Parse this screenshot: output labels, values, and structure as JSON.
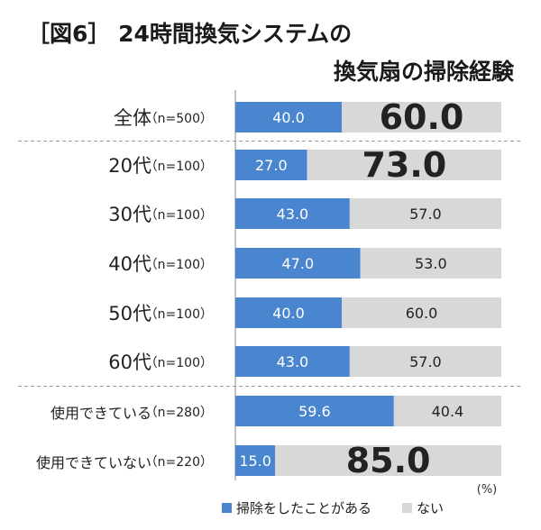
{
  "title_line1": "［図6］ 24時間換気システムの",
  "title_line2": "換気扇の掃除経験",
  "chart_data": {
    "type": "bar",
    "stacked": true,
    "orientation": "horizontal",
    "title": "［図6］ 24時間換気システムの 換気扇の掃除経験",
    "unit": "(%)",
    "xlim": [
      0,
      100
    ],
    "categories": [
      {
        "label": "全体",
        "n": "（n=500）"
      },
      {
        "label": "20代",
        "n": "（n=100）"
      },
      {
        "label": "30代",
        "n": "（n=100）"
      },
      {
        "label": "40代",
        "n": "（n=100）"
      },
      {
        "label": "50代",
        "n": "（n=100）"
      },
      {
        "label": "60代",
        "n": "（n=100）"
      },
      {
        "label": "使用できている",
        "n": "（n=280）"
      },
      {
        "label": "使用できていない",
        "n": "（n=220）"
      }
    ],
    "series": [
      {
        "name": "掃除をしたことがある",
        "color": "#4a86d0",
        "values": [
          40.0,
          27.0,
          43.0,
          47.0,
          40.0,
          43.0,
          59.6,
          15.0
        ],
        "labels": [
          "40.0",
          "27.0",
          "43.0",
          "47.0",
          "40.0",
          "43.0",
          "59.6",
          "15.0"
        ]
      },
      {
        "name": "ない",
        "color": "#d8d8d8",
        "values": [
          60.0,
          73.0,
          57.0,
          53.0,
          60.0,
          57.0,
          40.4,
          85.0
        ],
        "labels": [
          "60.0",
          "73.0",
          "57.0",
          "53.0",
          "60.0",
          "57.0",
          "40.4",
          "85.0"
        ],
        "emphasized": [
          true,
          true,
          false,
          false,
          false,
          false,
          false,
          true
        ]
      }
    ],
    "separators_after": [
      0,
      5
    ],
    "legend_position": "bottom"
  }
}
